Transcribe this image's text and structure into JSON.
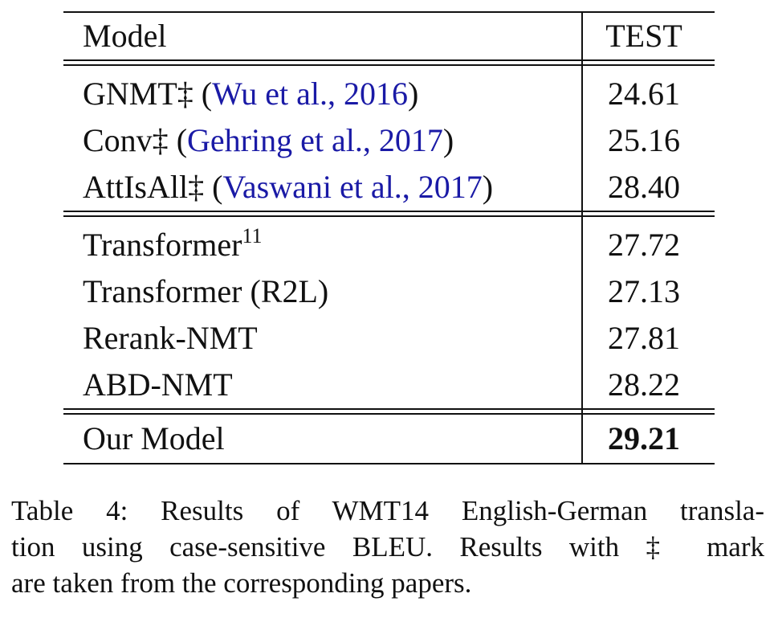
{
  "table": {
    "header": {
      "model": "Model",
      "test": "TEST"
    },
    "group1": [
      {
        "model": "GNMT‡",
        "cite_open": " (",
        "cite": "Wu et al., 2016",
        "cite_close": ")",
        "test": "24.61"
      },
      {
        "model": "Conv‡",
        "cite_open": " (",
        "cite": "Gehring et al., 2017",
        "cite_close": ")",
        "test": "25.16"
      },
      {
        "model": "AttIsAll‡",
        "cite_open": " (",
        "cite": "Vaswani et al., 2017",
        "cite_close": ")",
        "test": "28.40"
      }
    ],
    "group2": [
      {
        "model": "Transformer",
        "sup": "11",
        "test": "27.72"
      },
      {
        "model": "Transformer (R2L)",
        "test": "27.13"
      },
      {
        "model": "Rerank-NMT",
        "test": "27.81"
      },
      {
        "model": "ABD-NMT",
        "test": "28.22"
      }
    ],
    "final": {
      "model": "Our Model",
      "test": "29.21"
    }
  },
  "caption": {
    "line1": "Table 4:  Results of WMT14 English-German transla-",
    "line2": "tion using case-sensitive BLEU. Results with ‡ mark",
    "line3": "are taken from the corresponding papers."
  },
  "colors": {
    "citation": "#1a1aa6",
    "text": "#111111"
  }
}
